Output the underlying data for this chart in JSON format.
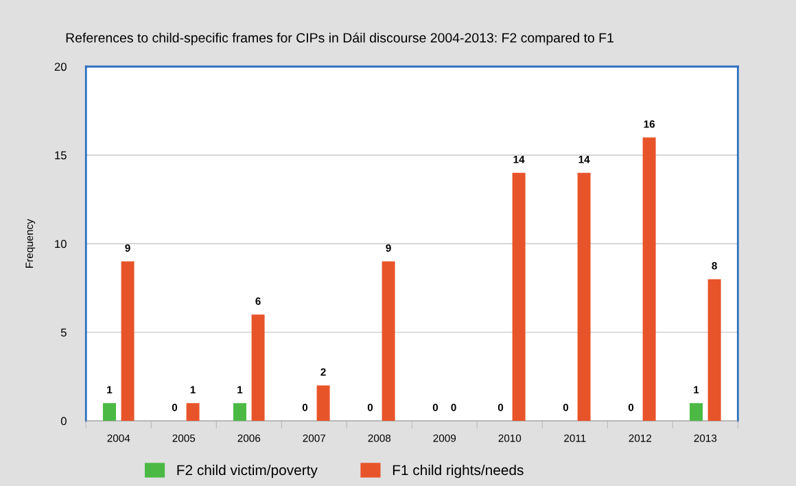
{
  "chart_data": {
    "type": "bar",
    "title": "References to child-specific frames for CIPs in Dáil discourse 2004-2013: F2 compared to F1",
    "ylabel": "Frequency",
    "categories": [
      "2004",
      "2005",
      "2006",
      "2007",
      "2008",
      "2009",
      "2010",
      "2011",
      "2012",
      "2013"
    ],
    "series": [
      {
        "name": "F2 child victim/poverty",
        "color": "#4cb944",
        "values": [
          1,
          0,
          1,
          0,
          0,
          0,
          0,
          0,
          0,
          1
        ]
      },
      {
        "name": "F1 child rights/needs",
        "color": "#e8542a",
        "values": [
          9,
          1,
          6,
          2,
          9,
          0,
          14,
          14,
          16,
          8
        ]
      }
    ],
    "ylim": [
      0,
      20
    ],
    "yticks": [
      0,
      5,
      10,
      15,
      20
    ],
    "grid": "y",
    "legend": "bottom",
    "data_labels": true
  }
}
